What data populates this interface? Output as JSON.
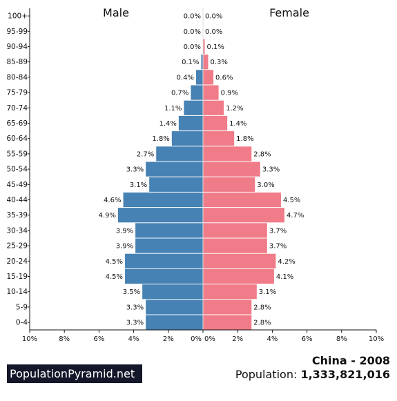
{
  "chart_data": {
    "type": "bar",
    "orientation": "horizontal",
    "legend": {
      "male_label": "Male",
      "female_label": "Female"
    },
    "categories": [
      "0-4",
      "5-9",
      "10-14",
      "15-19",
      "20-24",
      "25-29",
      "30-34",
      "35-39",
      "40-44",
      "45-49",
      "50-54",
      "55-59",
      "60-64",
      "65-69",
      "70-74",
      "75-79",
      "80-84",
      "85-89",
      "90-94",
      "95-99",
      "100+"
    ],
    "series": [
      {
        "name": "Male",
        "color": "#4682b4",
        "values": [
          3.3,
          3.3,
          3.5,
          4.5,
          4.5,
          3.9,
          3.9,
          4.9,
          4.6,
          3.1,
          3.3,
          2.7,
          1.8,
          1.4,
          1.1,
          0.7,
          0.4,
          0.1,
          0.0,
          0.0,
          0.0
        ]
      },
      {
        "name": "Female",
        "color": "#f07c89",
        "values": [
          2.8,
          2.8,
          3.1,
          4.1,
          4.2,
          3.7,
          3.7,
          4.7,
          4.5,
          3.0,
          3.3,
          2.8,
          1.8,
          1.4,
          1.2,
          0.9,
          0.6,
          0.3,
          0.1,
          0.0,
          0.0
        ]
      }
    ],
    "xlim": [
      -10,
      10
    ],
    "x_ticks_left": [
      "10%",
      "8%",
      "6%",
      "4%",
      "2%",
      "0%"
    ],
    "x_ticks_right": [
      "0%",
      "2%",
      "4%",
      "6%",
      "8%",
      "10%"
    ],
    "value_suffix": "%"
  },
  "footer": {
    "logo_text": "PopulationPyramid.net",
    "country_year": "China - 2008",
    "population_label": "Population:",
    "population_value": "1,333,821,016"
  }
}
